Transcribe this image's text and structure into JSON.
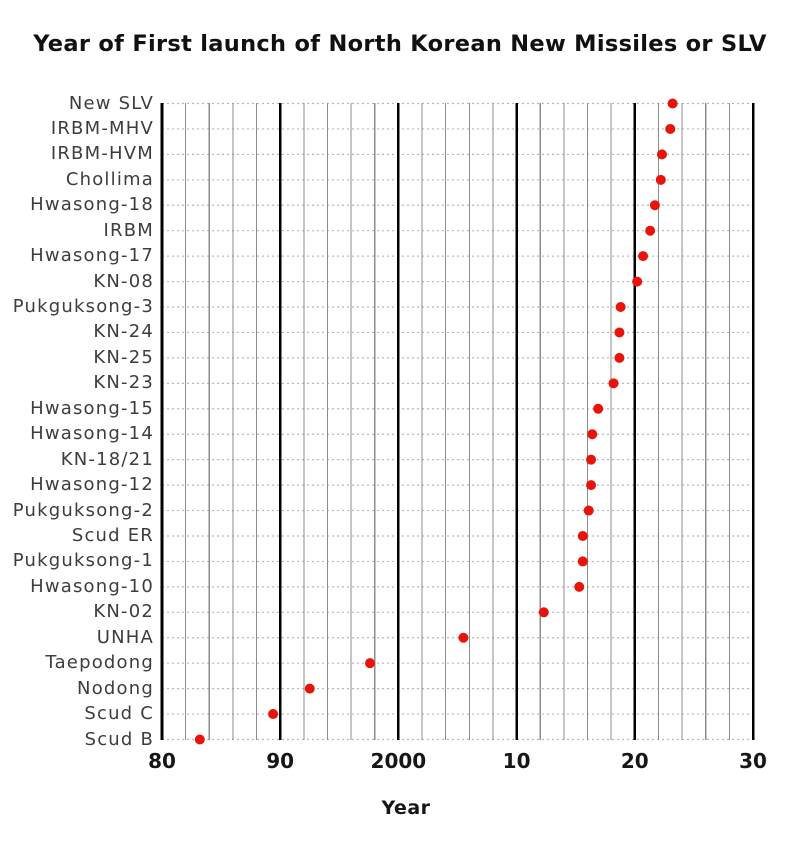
{
  "chart_data": {
    "type": "scatter",
    "title": "Year of First launch of North Korean New Missiles or SLV",
    "xlabel": "Year",
    "ylabel": "",
    "xlim": [
      1980,
      2030
    ],
    "grid": {
      "vertical_minor_step_years": 2,
      "vertical_major_step_years": 10,
      "horizontal": "dotted line at every category row",
      "legend": "none"
    },
    "x_ticks": [
      {
        "label": "80",
        "year": 1980
      },
      {
        "label": "90",
        "year": 1990
      },
      {
        "label": "2000",
        "year": 2000
      },
      {
        "label": "10",
        "year": 2010
      },
      {
        "label": "20",
        "year": 2020
      },
      {
        "label": "30",
        "year": 2030
      }
    ],
    "categories": [
      "New SLV",
      "IRBM-MHV",
      "IRBM-HVM",
      "Chollima",
      "Hwasong-18",
      "IRBM",
      "Hwasong-17",
      "KN-08",
      "Pukguksong-3",
      "KN-24",
      "KN-25",
      "KN-23",
      "Hwasong-15",
      "Hwasong-14",
      "KN-18/21",
      "Hwasong-12",
      "Pukguksong-2",
      "Scud ER",
      "Pukguksong-1",
      "Hwasong-10",
      "KN-02",
      "UNHA",
      "Taepodong",
      "Nodong",
      "Scud C",
      "Scud B"
    ],
    "values": [
      2023.2,
      2023.0,
      2022.3,
      2022.2,
      2021.7,
      2021.3,
      2020.7,
      2020.2,
      2018.8,
      2018.7,
      2018.7,
      2018.2,
      2016.9,
      2016.4,
      2016.3,
      2016.3,
      2016.1,
      2015.6,
      2015.6,
      2015.3,
      2012.3,
      2005.5,
      1997.6,
      1992.5,
      1989.4,
      1983.2
    ],
    "colors": {
      "marker": "#e8140c",
      "minor_gridline": "#8c8c8c",
      "major_gridline": "#000000",
      "row_dotted_line": "#b8b8b8",
      "category_label": "#3d3d3d",
      "tick_label": "#161616",
      "title": "#111111"
    }
  }
}
